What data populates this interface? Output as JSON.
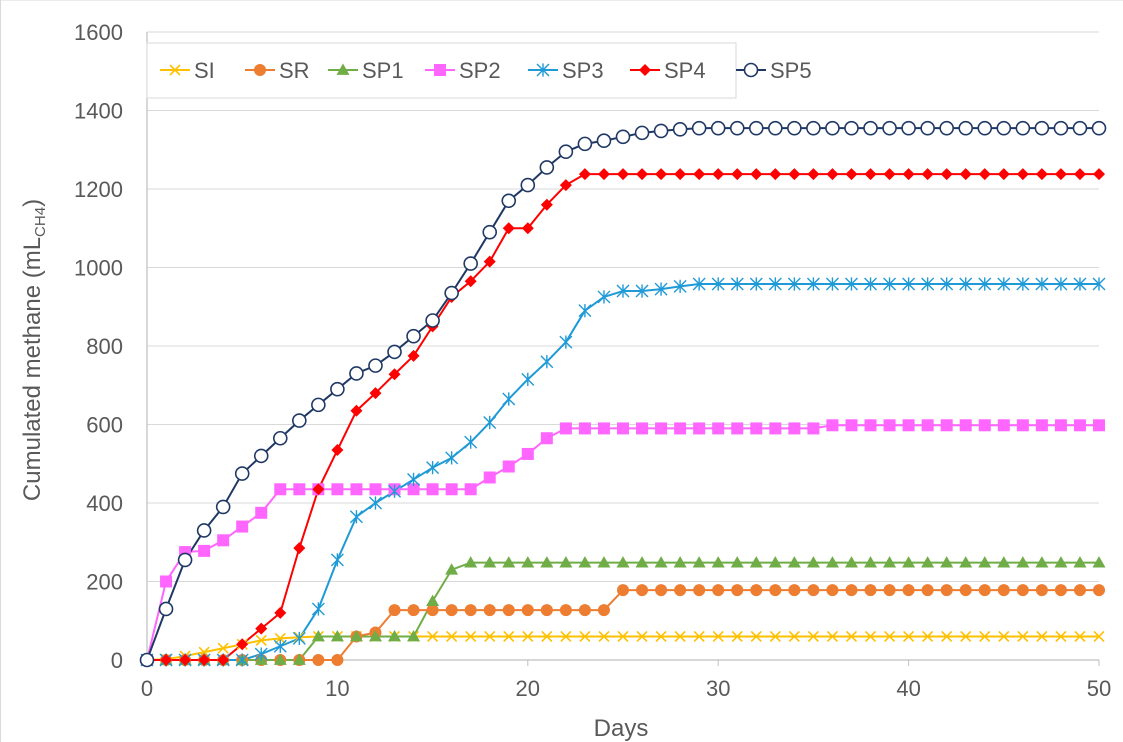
{
  "chart_data": {
    "type": "line",
    "title": "",
    "xlabel": "Days",
    "ylabel_main": "Cumulated methane (mL",
    "ylabel_sub": "CH4",
    "ylabel_close": ")",
    "xlim": [
      0,
      50
    ],
    "ylim": [
      0,
      1600
    ],
    "xticks": [
      "0",
      "10",
      "20",
      "30",
      "40",
      "50"
    ],
    "yticks": [
      "0",
      "200",
      "400",
      "600",
      "800",
      "1000",
      "1200",
      "1400",
      "1600"
    ],
    "grid": "horizontal",
    "legend_position": "top-left, inside",
    "series": [
      {
        "name": "SI",
        "color": "#ffc000",
        "marker": "x",
        "x": [
          0,
          1,
          2,
          3,
          4,
          5,
          6,
          7,
          8,
          9,
          10,
          11,
          12,
          13,
          14,
          15,
          16,
          17,
          18,
          19,
          20,
          21,
          22,
          23,
          24,
          25,
          26,
          27,
          28,
          29,
          30,
          31,
          32,
          33,
          34,
          35,
          36,
          37,
          38,
          39,
          40,
          41,
          42,
          43,
          44,
          45,
          46,
          47,
          48,
          49,
          50
        ],
        "y": [
          0,
          2,
          10,
          20,
          30,
          40,
          50,
          55,
          58,
          60,
          60,
          60,
          60,
          60,
          60,
          60,
          60,
          60,
          60,
          60,
          60,
          60,
          60,
          60,
          60,
          60,
          60,
          60,
          60,
          60,
          60,
          60,
          60,
          60,
          60,
          60,
          60,
          60,
          60,
          60,
          60,
          60,
          60,
          60,
          60,
          60,
          60,
          60,
          60,
          60,
          60
        ]
      },
      {
        "name": "SR",
        "color": "#ed7d31",
        "marker": "circle",
        "x": [
          0,
          1,
          2,
          3,
          4,
          5,
          6,
          7,
          8,
          9,
          10,
          11,
          12,
          13,
          14,
          15,
          16,
          17,
          18,
          19,
          20,
          21,
          22,
          23,
          24,
          25,
          26,
          27,
          28,
          29,
          30,
          31,
          32,
          33,
          34,
          35,
          36,
          37,
          38,
          39,
          40,
          41,
          42,
          43,
          44,
          45,
          46,
          47,
          48,
          49,
          50
        ],
        "y": [
          0,
          0,
          0,
          0,
          0,
          0,
          0,
          0,
          0,
          0,
          0,
          60,
          70,
          127,
          127,
          127,
          127,
          127,
          127,
          127,
          127,
          127,
          127,
          127,
          127,
          178,
          178,
          178,
          178,
          178,
          178,
          178,
          178,
          178,
          178,
          178,
          178,
          178,
          178,
          178,
          178,
          178,
          178,
          178,
          178,
          178,
          178,
          178,
          178,
          178,
          178
        ]
      },
      {
        "name": "SP1",
        "color": "#70ad47",
        "marker": "triangle",
        "x": [
          0,
          1,
          2,
          3,
          4,
          5,
          6,
          7,
          8,
          9,
          10,
          11,
          12,
          13,
          14,
          15,
          16,
          17,
          18,
          19,
          20,
          21,
          22,
          23,
          24,
          25,
          26,
          27,
          28,
          29,
          30,
          31,
          32,
          33,
          34,
          35,
          36,
          37,
          38,
          39,
          40,
          41,
          42,
          43,
          44,
          45,
          46,
          47,
          48,
          49,
          50
        ],
        "y": [
          0,
          0,
          0,
          0,
          0,
          0,
          0,
          0,
          0,
          60,
          60,
          60,
          60,
          60,
          60,
          150,
          230,
          248,
          248,
          248,
          248,
          248,
          248,
          248,
          248,
          248,
          248,
          248,
          248,
          248,
          248,
          248,
          248,
          248,
          248,
          248,
          248,
          248,
          248,
          248,
          248,
          248,
          248,
          248,
          248,
          248,
          248,
          248,
          248,
          248,
          248
        ]
      },
      {
        "name": "SP2",
        "color": "#ff66ff",
        "marker": "square",
        "x": [
          0,
          1,
          2,
          3,
          4,
          5,
          6,
          7,
          8,
          9,
          10,
          11,
          12,
          13,
          14,
          15,
          16,
          17,
          18,
          19,
          20,
          21,
          22,
          23,
          24,
          25,
          26,
          27,
          28,
          29,
          30,
          31,
          32,
          33,
          34,
          35,
          36,
          37,
          38,
          39,
          40,
          41,
          42,
          43,
          44,
          45,
          46,
          47,
          48,
          49,
          50
        ],
        "y": [
          0,
          200,
          275,
          278,
          305,
          340,
          375,
          435,
          435,
          435,
          435,
          435,
          435,
          435,
          435,
          435,
          435,
          435,
          465,
          493,
          525,
          565,
          590,
          590,
          590,
          590,
          590,
          590,
          590,
          590,
          590,
          590,
          590,
          590,
          590,
          590,
          598,
          598,
          598,
          598,
          598,
          598,
          598,
          598,
          598,
          598,
          598,
          598,
          598,
          598,
          598
        ]
      },
      {
        "name": "SP3",
        "color": "#1f9ad6",
        "marker": "asterisk",
        "x": [
          0,
          1,
          2,
          3,
          4,
          5,
          6,
          7,
          8,
          9,
          10,
          11,
          12,
          13,
          14,
          15,
          16,
          17,
          18,
          19,
          20,
          21,
          22,
          23,
          24,
          25,
          26,
          27,
          28,
          29,
          30,
          31,
          32,
          33,
          34,
          35,
          36,
          37,
          38,
          39,
          40,
          41,
          42,
          43,
          44,
          45,
          46,
          47,
          48,
          49,
          50
        ],
        "y": [
          0,
          0,
          0,
          0,
          0,
          0,
          15,
          35,
          55,
          130,
          255,
          365,
          400,
          430,
          460,
          490,
          515,
          555,
          605,
          665,
          715,
          760,
          810,
          890,
          925,
          940,
          940,
          945,
          952,
          958,
          958,
          958,
          958,
          958,
          958,
          958,
          958,
          958,
          958,
          958,
          958,
          958,
          958,
          958,
          958,
          958,
          958,
          958,
          958,
          958,
          958
        ]
      },
      {
        "name": "SP4",
        "color": "#ff0000",
        "marker": "diamond",
        "x": [
          0,
          1,
          2,
          3,
          4,
          5,
          6,
          7,
          8,
          9,
          10,
          11,
          12,
          13,
          14,
          15,
          16,
          17,
          18,
          19,
          20,
          21,
          22,
          23,
          24,
          25,
          26,
          27,
          28,
          29,
          30,
          31,
          32,
          33,
          34,
          35,
          36,
          37,
          38,
          39,
          40,
          41,
          42,
          43,
          44,
          45,
          46,
          47,
          48,
          49,
          50
        ],
        "y": [
          0,
          0,
          0,
          0,
          0,
          40,
          80,
          120,
          285,
          435,
          535,
          635,
          680,
          728,
          775,
          850,
          925,
          965,
          1015,
          1100,
          1100,
          1160,
          1210,
          1238,
          1238,
          1238,
          1238,
          1238,
          1238,
          1238,
          1238,
          1238,
          1238,
          1238,
          1238,
          1238,
          1238,
          1238,
          1238,
          1238,
          1238,
          1238,
          1238,
          1238,
          1238,
          1238,
          1238,
          1238,
          1238,
          1238,
          1238
        ]
      },
      {
        "name": "SP5",
        "color": "#1f3864",
        "marker": "open-circle",
        "x": [
          0,
          1,
          2,
          3,
          4,
          5,
          6,
          7,
          8,
          9,
          10,
          11,
          12,
          13,
          14,
          15,
          16,
          17,
          18,
          19,
          20,
          21,
          22,
          23,
          24,
          25,
          26,
          27,
          28,
          29,
          30,
          31,
          32,
          33,
          34,
          35,
          36,
          37,
          38,
          39,
          40,
          41,
          42,
          43,
          44,
          45,
          46,
          47,
          48,
          49,
          50
        ],
        "y": [
          0,
          130,
          255,
          330,
          390,
          475,
          520,
          565,
          610,
          650,
          690,
          730,
          750,
          785,
          825,
          865,
          935,
          1010,
          1090,
          1170,
          1210,
          1255,
          1295,
          1315,
          1323,
          1333,
          1343,
          1348,
          1352,
          1355,
          1355,
          1355,
          1355,
          1355,
          1355,
          1355,
          1355,
          1355,
          1355,
          1355,
          1355,
          1355,
          1355,
          1355,
          1355,
          1355,
          1355,
          1355,
          1355,
          1355,
          1355
        ]
      }
    ]
  }
}
